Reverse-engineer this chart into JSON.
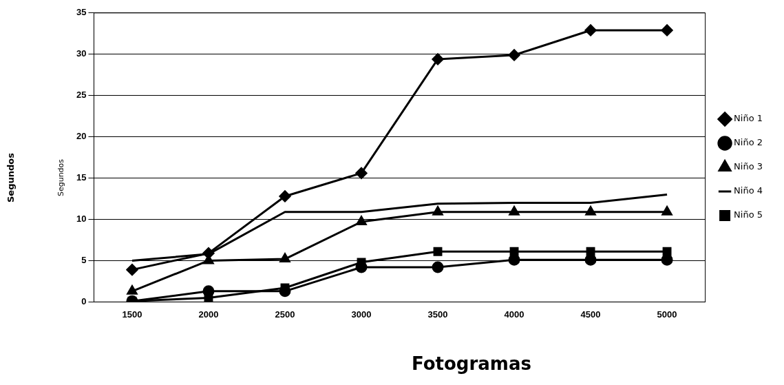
{
  "chart_data": {
    "type": "line",
    "xlabel": "Fotogramas",
    "ylabel": "Segundos",
    "annotations": [
      "Segundos"
    ],
    "categories": [
      "1500",
      "2000",
      "2500",
      "3000",
      "3500",
      "4000",
      "4500",
      "5000"
    ],
    "series": [
      {
        "name": "Niño 1",
        "color": "#000000",
        "marker": "diamond",
        "values": [
          3.9,
          5.9,
          12.8,
          15.6,
          29.4,
          29.9,
          32.9,
          32.9
        ]
      },
      {
        "name": "Niño 2",
        "color": "#000000",
        "marker": "circle",
        "values": [
          0.1,
          1.3,
          1.3,
          4.2,
          4.2,
          5.1,
          5.1,
          5.1
        ]
      },
      {
        "name": "Niño 3",
        "color": "#000000",
        "marker": "triangle",
        "values": [
          1.3,
          5.0,
          5.2,
          9.7,
          10.9,
          10.9,
          10.9,
          10.9
        ]
      },
      {
        "name": "Niño 4",
        "color": "#000000",
        "marker": "none",
        "values": [
          5.0,
          5.8,
          10.9,
          10.9,
          11.9,
          12.0,
          12.0,
          13.0
        ]
      },
      {
        "name": "Niño 5",
        "color": "#000000",
        "marker": "square",
        "values": [
          0.1,
          0.5,
          1.7,
          4.8,
          6.1,
          6.1,
          6.1,
          6.1
        ]
      }
    ],
    "ylim": [
      0,
      35
    ],
    "yticks": [
      0,
      5,
      10,
      15,
      20,
      25,
      30,
      35
    ],
    "grid": "y",
    "legend": "right"
  }
}
